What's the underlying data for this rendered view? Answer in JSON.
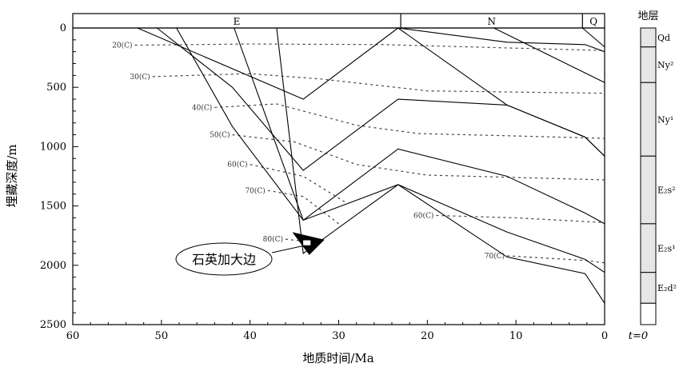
{
  "chart_data": {
    "type": "line",
    "title": "",
    "xlabel": "地质时间/Ma",
    "ylabel": "埋藏深度/m",
    "xlim": [
      60,
      0
    ],
    "ylim": [
      0,
      2500
    ],
    "x_reversed": true,
    "y_inverted": true,
    "x_ticks": [
      60,
      50,
      40,
      30,
      20,
      10,
      0
    ],
    "y_ticks": [
      0,
      500,
      1000,
      1500,
      2000,
      2500
    ],
    "grid": false,
    "periods": [
      {
        "label": "E",
        "from": 60,
        "to": 23
      },
      {
        "label": "N",
        "from": 23,
        "to": 2.5
      },
      {
        "label": "Q",
        "from": 2.5,
        "to": 0
      }
    ],
    "burial_curves": [
      {
        "points": [
          [
            52.7,
            0
          ],
          [
            34,
            600
          ],
          [
            23.3,
            0
          ],
          [
            11,
            120
          ],
          [
            2.2,
            140
          ],
          [
            0,
            200
          ]
        ]
      },
      {
        "points": [
          [
            50.5,
            0
          ],
          [
            42,
            500
          ],
          [
            34,
            1200
          ],
          [
            23.3,
            600
          ],
          [
            11,
            650
          ],
          [
            2.2,
            920
          ],
          [
            0,
            1080
          ]
        ]
      },
      {
        "points": [
          [
            48.3,
            0
          ],
          [
            42,
            830
          ],
          [
            34,
            1620
          ],
          [
            23.3,
            1020
          ],
          [
            11,
            1250
          ],
          [
            2.2,
            1560
          ],
          [
            0,
            1650
          ]
        ]
      },
      {
        "points": [
          [
            37,
            0
          ],
          [
            34,
            1900
          ],
          [
            23.3,
            1320
          ],
          [
            11,
            1930
          ],
          [
            2.2,
            2070
          ],
          [
            0,
            2320
          ]
        ]
      },
      {
        "points": [
          [
            41.8,
            0
          ],
          [
            34,
            1620
          ],
          [
            23.3,
            1320
          ],
          [
            11,
            1720
          ],
          [
            2.2,
            1950
          ],
          [
            0,
            2060
          ]
        ]
      },
      {
        "points": [
          [
            23.3,
            0
          ],
          [
            11,
            650
          ],
          [
            2.2,
            920
          ],
          [
            0,
            1080
          ]
        ]
      },
      {
        "points": [
          [
            23.3,
            0
          ],
          [
            12.5,
            0
          ],
          [
            0,
            460
          ]
        ]
      },
      {
        "points": [
          [
            2.5,
            0
          ],
          [
            0,
            160
          ]
        ]
      }
    ],
    "isotherms": [
      {
        "label": "20(C)",
        "points": [
          [
            53,
            145
          ],
          [
            40,
            135
          ],
          [
            25,
            140
          ],
          [
            10,
            170
          ],
          [
            0,
            190
          ]
        ]
      },
      {
        "label": "30(C)",
        "points": [
          [
            51,
            410
          ],
          [
            40,
            385
          ],
          [
            32,
            430
          ],
          [
            20,
            530
          ],
          [
            10,
            540
          ],
          [
            0,
            550
          ]
        ]
      },
      {
        "label": "40(C)",
        "points": [
          [
            44,
            670
          ],
          [
            37,
            640
          ],
          [
            28,
            820
          ],
          [
            21,
            890
          ],
          [
            10,
            910
          ],
          [
            0,
            930
          ]
        ]
      },
      {
        "label": "50(C)",
        "points": [
          [
            42,
            900
          ],
          [
            35,
            960
          ],
          [
            28,
            1150
          ],
          [
            20,
            1240
          ],
          [
            10,
            1260
          ],
          [
            0,
            1280
          ]
        ]
      },
      {
        "label": "60(C)",
        "points": [
          [
            40,
            1150
          ],
          [
            34,
            1250
          ],
          [
            29,
            1480
          ]
        ]
      },
      {
        "label": "60(C)",
        "points": [
          [
            19,
            1580
          ],
          [
            10,
            1600
          ],
          [
            0,
            1640
          ]
        ]
      },
      {
        "label": "70(C)",
        "points": [
          [
            38,
            1370
          ],
          [
            34,
            1420
          ],
          [
            30,
            1650
          ]
        ]
      },
      {
        "label": "70(C)",
        "points": [
          [
            11,
            1920
          ],
          [
            2,
            1960
          ],
          [
            0,
            1980
          ]
        ]
      },
      {
        "label": "80(C)",
        "points": [
          [
            36,
            1780
          ],
          [
            33.5,
            1800
          ]
        ]
      }
    ],
    "annotation": {
      "label": "石英加大边",
      "x": 33.5,
      "y": 1780
    },
    "strat_column": {
      "title": "地层",
      "bottom_label": "t=0",
      "units": [
        {
          "label": "Qd",
          "top": 0,
          "bottom": 160
        },
        {
          "label": "Ny²",
          "top": 160,
          "bottom": 460
        },
        {
          "label": "Ny¹",
          "top": 460,
          "bottom": 1080
        },
        {
          "label": "E₂s²",
          "top": 1080,
          "bottom": 1650
        },
        {
          "label": "E₂s¹",
          "top": 1650,
          "bottom": 2060
        },
        {
          "label": "E₂d²",
          "top": 2060,
          "bottom": 2320
        },
        {
          "label": "",
          "top": 2320,
          "bottom": 2500
        }
      ]
    }
  }
}
